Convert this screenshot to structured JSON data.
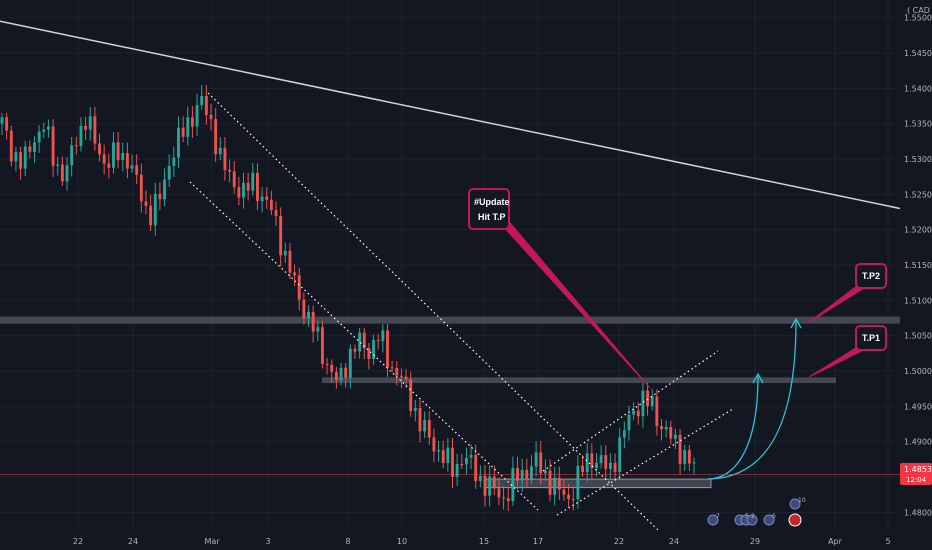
{
  "currency": "CAD",
  "price_badge": {
    "price": "1.48535",
    "countdown": "12:04",
    "color": "#f23645"
  },
  "annotations": {
    "update_line1": "#Update",
    "update_line2": "Hit T.P",
    "tp1": "T.P1",
    "tp2": "T.P2"
  },
  "event_markers": [
    "7",
    "5",
    "2",
    "6",
    "10"
  ],
  "colors": {
    "background": "#131722",
    "up": "#26a69a",
    "down": "#ef5350",
    "grid": "#1e222d",
    "label_border": "#c2185b",
    "arrow": "#26c6da",
    "trendline": "#d1d4dc",
    "zone": "#4a4e59"
  },
  "chart_data": {
    "type": "candlestick",
    "title": "",
    "ylim": [
      1.4775,
      1.5525
    ],
    "y_ticks": [
      1.48,
      1.485,
      1.49,
      1.495,
      1.5,
      1.505,
      1.51,
      1.515,
      1.52,
      1.525,
      1.53,
      1.535,
      1.54,
      1.545,
      1.55
    ],
    "x_tick_labels": [
      "22",
      "24",
      "Mar",
      "3",
      "8",
      "10",
      "15",
      "17",
      "22",
      "24",
      "29",
      "Apr",
      "5"
    ],
    "horizontal_zones": [
      [
        1.5067,
        1.5077
      ],
      [
        1.4983,
        1.4991
      ],
      [
        1.4835,
        1.4847
      ]
    ],
    "descending_trendline": [
      1.5495,
      1.523
    ],
    "close_path": [
      1.535,
      1.531,
      1.529,
      1.533,
      1.5345,
      1.53,
      1.527,
      1.533,
      1.5355,
      1.532,
      1.529,
      1.531,
      1.53,
      1.526,
      1.522,
      1.524,
      1.53,
      1.533,
      1.536,
      1.538,
      1.535,
      1.529,
      1.527,
      1.525,
      1.527,
      1.524,
      1.522,
      1.516,
      1.512,
      1.508,
      1.505,
      1.501,
      1.498,
      1.502,
      1.504,
      1.503,
      1.505,
      1.501,
      1.499,
      1.496,
      1.492,
      1.49,
      1.488,
      1.486,
      1.488,
      1.486,
      1.484,
      1.483,
      1.482,
      1.485,
      1.486,
      1.487,
      1.485,
      1.483,
      1.482,
      1.485,
      1.488,
      1.487,
      1.486,
      1.49,
      1.494,
      1.496,
      1.495,
      1.492,
      1.49,
      1.4885,
      1.486
    ]
  }
}
